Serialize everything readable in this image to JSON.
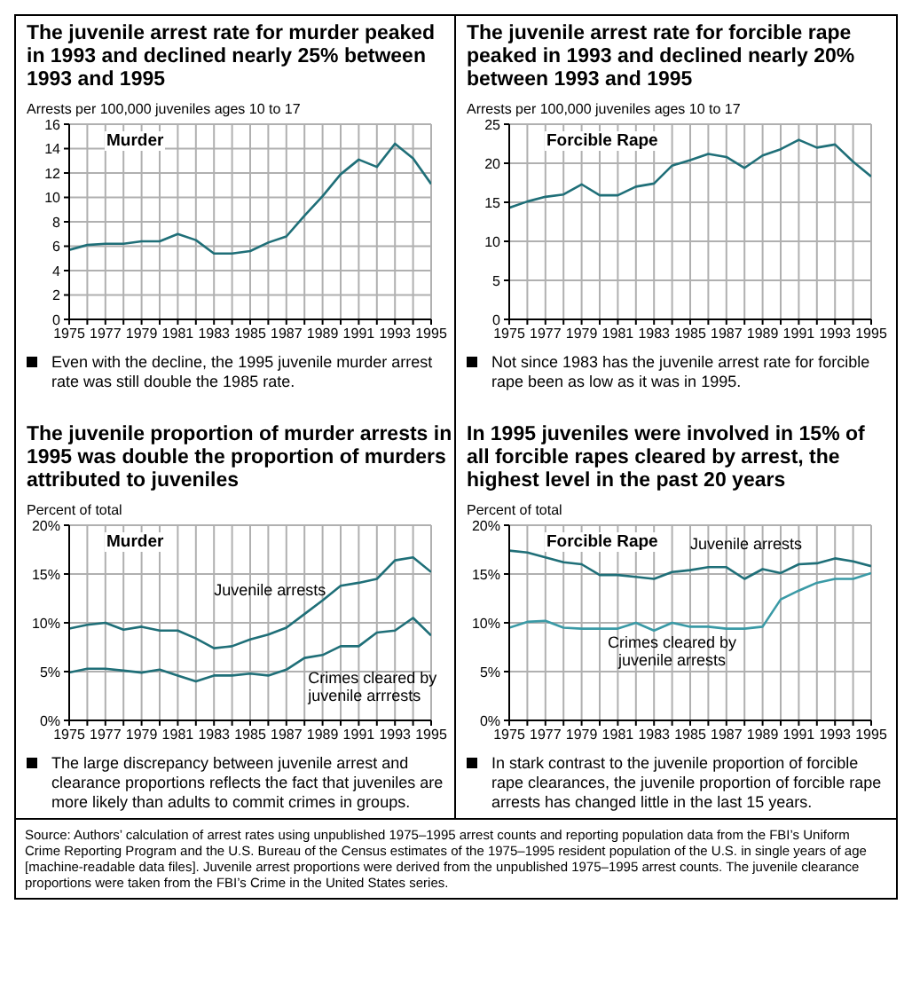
{
  "chart_data": [
    {
      "type": "line",
      "title": "The juvenile arrest rate for murder peaked in 1993 and declined nearly 25% between 1993 and 1995",
      "ylabel": "Arrests per 100,000 juveniles ages 10 to 17",
      "annotations": [
        "Murder",
        "Even with the decline, the 1995 juvenile murder arrest rate was still double the 1985 rate."
      ],
      "x": [
        1975,
        1976,
        1977,
        1978,
        1979,
        1980,
        1981,
        1982,
        1983,
        1984,
        1985,
        1986,
        1987,
        1988,
        1989,
        1990,
        1991,
        1992,
        1993,
        1994,
        1995
      ],
      "xlim": [
        1975,
        1995
      ],
      "xticks": [
        1975,
        {
          "value": 1976,
          "label": null
        },
        1977,
        {
          "value": 1978,
          "label": null
        },
        1979,
        {
          "value": 1980,
          "label": null
        },
        1981,
        {
          "value": 1982,
          "label": null
        },
        1983,
        {
          "value": 1984,
          "label": null
        },
        1985,
        {
          "value": 1986,
          "label": null
        },
        1987,
        {
          "value": 1988,
          "label": null
        },
        1989,
        {
          "value": 1990,
          "label": null
        },
        1991,
        {
          "value": 1992,
          "label": null
        },
        1993,
        {
          "value": 1994,
          "label": null
        },
        1995
      ],
      "ylim": [
        0,
        16
      ],
      "yticks": [
        0,
        2,
        4,
        6,
        8,
        10,
        12,
        14,
        16
      ],
      "grid": true,
      "marker": "none",
      "series": [
        {
          "color": "#1f6f78",
          "values": [
            5.7,
            6.1,
            6.2,
            6.2,
            6.4,
            6.4,
            7.0,
            6.5,
            5.4,
            5.4,
            5.6,
            6.3,
            6.8,
            8.5,
            10.1,
            11.9,
            13.1,
            12.5,
            14.4,
            13.2,
            11.1
          ]
        }
      ]
    },
    {
      "type": "line",
      "title": "The juvenile arrest rate for forcible rape peaked in 1993 and declined nearly 20% between 1993 and 1995",
      "ylabel": "Arrests per 100,000 juveniles ages 10 to 17",
      "annotations": [
        "Forcible Rape",
        "Not since 1983 has the juvenile arrest rate for forcible rape been as low as it was in 1995."
      ],
      "x": [
        1975,
        1976,
        1977,
        1978,
        1979,
        1980,
        1981,
        1982,
        1983,
        1984,
        1985,
        1986,
        1987,
        1988,
        1989,
        1990,
        1991,
        1992,
        1993,
        1994,
        1995
      ],
      "xlim": [
        1975,
        1995
      ],
      "xticks": [
        1975,
        {
          "value": 1976,
          "label": null
        },
        1977,
        {
          "value": 1978,
          "label": null
        },
        1979,
        {
          "value": 1980,
          "label": null
        },
        1981,
        {
          "value": 1982,
          "label": null
        },
        1983,
        {
          "value": 1984,
          "label": null
        },
        1985,
        {
          "value": 1986,
          "label": null
        },
        1987,
        {
          "value": 1988,
          "label": null
        },
        1989,
        {
          "value": 1990,
          "label": null
        },
        1991,
        {
          "value": 1992,
          "label": null
        },
        1993,
        {
          "value": 1994,
          "label": null
        },
        1995
      ],
      "ylim": [
        0,
        25
      ],
      "yticks": [
        0,
        5,
        10,
        15,
        20,
        25
      ],
      "grid": true,
      "marker": "none",
      "series": [
        {
          "color": "#1f6f78",
          "values": [
            14.3,
            15.1,
            15.7,
            16.0,
            17.3,
            15.9,
            15.9,
            17.0,
            17.4,
            19.7,
            20.4,
            21.2,
            20.8,
            19.4,
            21.0,
            21.8,
            23.0,
            22.0,
            22.4,
            20.2,
            18.3
          ]
        }
      ]
    },
    {
      "type": "line",
      "title": "The juvenile proportion of murder arrests in 1995 was double the proportion of murders attributed to juveniles",
      "ylabel": "Percent of total",
      "annotations": [
        "Murder",
        "The large discrepancy between juvenile arrest and clearance proportions reflects the fact that juveniles are more likely than adults to commit crimes in groups."
      ],
      "x": [
        1975,
        1976,
        1977,
        1978,
        1979,
        1980,
        1981,
        1982,
        1983,
        1984,
        1985,
        1986,
        1987,
        1988,
        1989,
        1990,
        1991,
        1992,
        1993,
        1994,
        1995
      ],
      "xlim": [
        1975,
        1995
      ],
      "xticks": [
        1975,
        {
          "value": 1976,
          "label": null
        },
        1977,
        {
          "value": 1978,
          "label": null
        },
        1979,
        {
          "value": 1980,
          "label": null
        },
        1981,
        {
          "value": 1982,
          "label": null
        },
        1983,
        {
          "value": 1984,
          "label": null
        },
        1985,
        {
          "value": 1986,
          "label": null
        },
        1987,
        {
          "value": 1988,
          "label": null
        },
        1989,
        {
          "value": 1990,
          "label": null
        },
        1991,
        {
          "value": 1992,
          "label": null
        },
        1993,
        {
          "value": 1994,
          "label": null
        },
        1995
      ],
      "ylim": [
        0,
        20
      ],
      "yticks": [
        {
          "value": 0,
          "label": "0%"
        },
        {
          "value": 5,
          "label": "5%"
        },
        {
          "value": 10,
          "label": "10%"
        },
        {
          "value": 15,
          "label": "15%"
        },
        {
          "value": 20,
          "label": "20%"
        }
      ],
      "grid": true,
      "marker": "none",
      "series": [
        {
          "name": "Juvenile arrests",
          "color": "#1f6f78",
          "values": [
            9.4,
            9.8,
            10.0,
            9.3,
            9.6,
            9.2,
            9.2,
            8.4,
            7.4,
            7.6,
            8.3,
            8.8,
            9.5,
            10.9,
            12.3,
            13.8,
            14.1,
            14.5,
            16.4,
            16.7,
            15.2
          ]
        },
        {
          "name": "Crimes cleared by juvenile arrrests",
          "color": "#1f6f78",
          "values": [
            4.9,
            5.3,
            5.3,
            5.1,
            4.9,
            5.2,
            4.6,
            4.0,
            4.6,
            4.6,
            4.8,
            4.6,
            5.2,
            6.4,
            6.7,
            7.6,
            7.6,
            9.0,
            9.2,
            10.5,
            8.7
          ]
        }
      ]
    },
    {
      "type": "line",
      "title": "In 1995 juveniles were involved in 15% of all forcible rapes cleared by arrest, the highest level in the past 20 years",
      "ylabel": "Percent of total",
      "annotations": [
        "Forcible Rape",
        "In stark contrast to the juvenile proportion of forcible rape clearances, the juvenile proportion of forcible rape arrests has changed little in the last 15 years.",
        "Source: Authors’ calculation of arrest rates using unpublished 1975–1995 arrest counts and reporting population data from the FBI’s Uniform Crime Reporting Program and the U.S. Bureau of the Census estimates of the 1975–1995 resident population of the U.S. in single years of age [machine-readable data files]. Juvenile arrest proportions were derived from the unpublished 1975–1995 arrest counts. The juvenile clearance proportions were taken from the FBI’s Crime in the United States series."
      ],
      "x": [
        1975,
        1976,
        1977,
        1978,
        1979,
        1980,
        1981,
        1982,
        1983,
        1984,
        1985,
        1986,
        1987,
        1988,
        1989,
        1990,
        1991,
        1992,
        1993,
        1994,
        1995
      ],
      "xlim": [
        1975,
        1995
      ],
      "xticks": [
        1975,
        {
          "value": 1976,
          "label": null
        },
        1977,
        {
          "value": 1978,
          "label": null
        },
        1979,
        {
          "value": 1980,
          "label": null
        },
        1981,
        {
          "value": 1982,
          "label": null
        },
        1983,
        {
          "value": 1984,
          "label": null
        },
        1985,
        {
          "value": 1986,
          "label": null
        },
        1987,
        {
          "value": 1988,
          "label": null
        },
        1989,
        {
          "value": 1990,
          "label": null
        },
        1991,
        {
          "value": 1992,
          "label": null
        },
        1993,
        {
          "value": 1994,
          "label": null
        },
        1995
      ],
      "ylim": [
        0,
        20
      ],
      "yticks": [
        {
          "value": 0,
          "label": "0%"
        },
        {
          "value": 5,
          "label": "5%"
        },
        {
          "value": 10,
          "label": "10%"
        },
        {
          "value": 15,
          "label": "15%"
        },
        {
          "value": 20,
          "label": "20%"
        }
      ],
      "grid": true,
      "marker": "none",
      "series": [
        {
          "name": "Juvenile arrests",
          "color": "#1f6f78",
          "values": [
            17.4,
            17.2,
            16.7,
            16.2,
            16.0,
            14.9,
            14.9,
            14.7,
            14.5,
            15.2,
            15.4,
            15.7,
            15.7,
            14.5,
            15.5,
            15.1,
            16.0,
            16.1,
            16.6,
            16.3,
            15.8
          ]
        },
        {
          "name": "Crimes cleared by juvenile arrests",
          "color": "#3a9aa6",
          "values": [
            9.5,
            10.1,
            10.2,
            9.5,
            9.4,
            9.4,
            9.4,
            10.0,
            9.2,
            10.0,
            9.6,
            9.6,
            9.4,
            9.4,
            9.6,
            12.4,
            13.3,
            14.1,
            14.5,
            14.5,
            15.1
          ]
        }
      ]
    }
  ]
}
